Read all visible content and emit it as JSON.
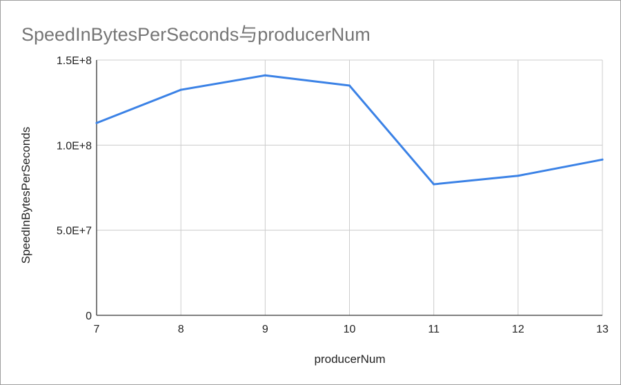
{
  "chart_data": {
    "type": "line",
    "title": "SpeedInBytesPerSeconds与producerNum",
    "xlabel": "producerNum",
    "ylabel": "SpeedInBytesPerSeconds",
    "x": [
      7,
      8,
      9,
      10,
      11,
      12,
      13
    ],
    "series": [
      {
        "values": [
          113000000,
          132500000,
          141000000,
          135000000,
          77000000,
          82000000,
          91500000
        ],
        "color": "#3b82e6"
      }
    ],
    "xlim": [
      7,
      13
    ],
    "ylim": [
      0,
      150000000
    ],
    "x_ticks": [
      "7",
      "8",
      "9",
      "10",
      "11",
      "12",
      "13"
    ],
    "y_ticks": [
      {
        "value": 0,
        "label": "0"
      },
      {
        "value": 50000000,
        "label": "5.0E+7"
      },
      {
        "value": 100000000,
        "label": "1.0E+8"
      },
      {
        "value": 150000000,
        "label": "1.5E+8"
      }
    ],
    "grid": true,
    "legend": "none"
  },
  "colors": {
    "title": "#757575",
    "grid": "#cccccc",
    "axis": "#333333",
    "text": "#222222",
    "line": "#3b82e6"
  }
}
